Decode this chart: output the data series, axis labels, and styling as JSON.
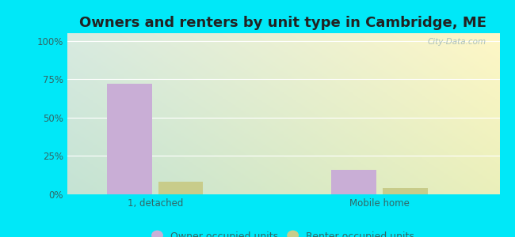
{
  "title": "Owners and renters by unit type in Cambridge, ME",
  "categories": [
    "1, detached",
    "Mobile home"
  ],
  "owner_values": [
    72,
    16
  ],
  "renter_values": [
    8,
    4
  ],
  "owner_color": "#c9aed6",
  "renter_color": "#c8cc8a",
  "yticks": [
    0,
    25,
    50,
    75,
    100
  ],
  "ytick_labels": [
    "0%",
    "25%",
    "50%",
    "75%",
    "100%"
  ],
  "ylim": [
    0,
    105
  ],
  "bar_width": 0.28,
  "legend_owner": "Owner occupied units",
  "legend_renter": "Renter occupied units",
  "bg_grad_topleft": "#e0f0e8",
  "bg_grad_topright": "#f5f0f0",
  "bg_grad_bottom": "#d0ede0",
  "outer_bg": "#00e8f8",
  "title_fontsize": 13,
  "axis_fontsize": 8.5,
  "legend_fontsize": 9,
  "tick_color": "#336666",
  "watermark": "City-Data.com"
}
